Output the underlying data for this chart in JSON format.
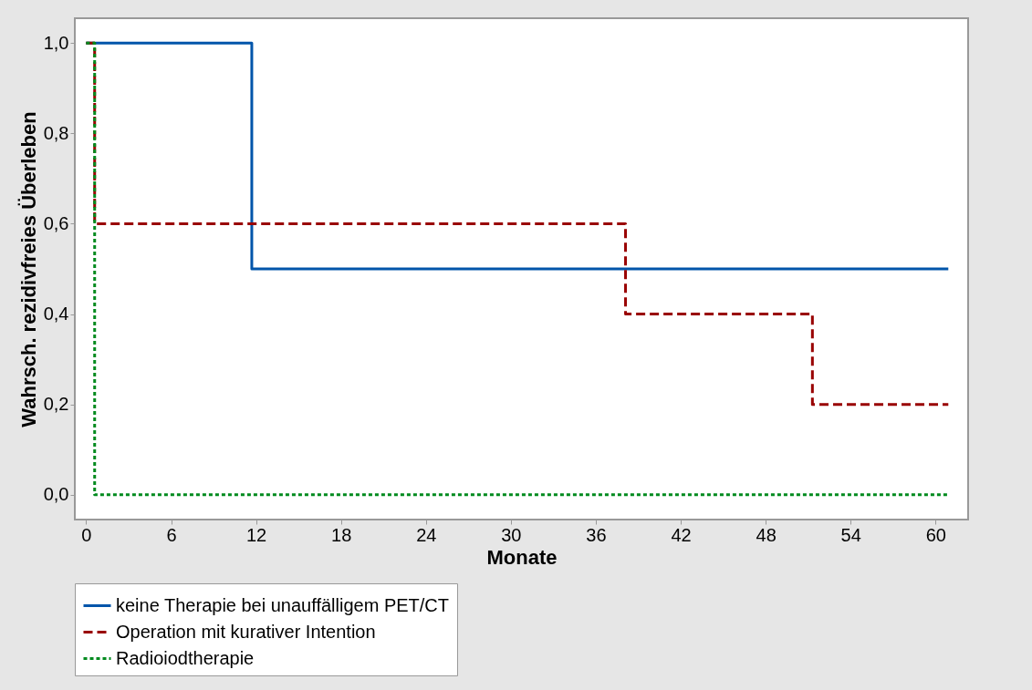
{
  "chart_data": {
    "type": "step",
    "xlabel": "Monate",
    "ylabel": "Wahrsch. rezidivfreies Überleben",
    "series": [
      {
        "name": "keine Therapie bei unauffälligem PET/CT",
        "color": "#0055aa",
        "line_style": "solid",
        "x": [
          0,
          11.7,
          60.9
        ],
        "values": [
          1.0,
          0.5,
          0.5
        ]
      },
      {
        "name": "Operation mit kurativer Intention",
        "color": "#990000",
        "line_style": "dashed",
        "x": [
          0,
          0.6,
          38.1,
          51.3,
          60.9
        ],
        "values": [
          1.0,
          0.6,
          0.4,
          0.2,
          0.2
        ]
      },
      {
        "name": "Radioiodtherapie",
        "color": "#008a1e",
        "line_style": "dotted",
        "x": [
          0,
          0.6,
          60.9
        ],
        "values": [
          1.0,
          0.0,
          0.0
        ]
      }
    ],
    "xlim": [
      -0.8,
      62.3
    ],
    "ylim": [
      -0.055,
      1.055
    ],
    "xticks": [
      0,
      6,
      12,
      18,
      24,
      30,
      36,
      42,
      48,
      54,
      60
    ],
    "yticks": [
      {
        "value": 0,
        "label": "0,0"
      },
      {
        "value": 0.2,
        "label": "0,2"
      },
      {
        "value": 0.4,
        "label": "0,4"
      },
      {
        "value": 0.6,
        "label": "0,6"
      },
      {
        "value": 0.8,
        "label": "0,8"
      },
      {
        "value": 1.0,
        "label": "1,0"
      }
    ],
    "grid": false,
    "legend": "bottom"
  }
}
